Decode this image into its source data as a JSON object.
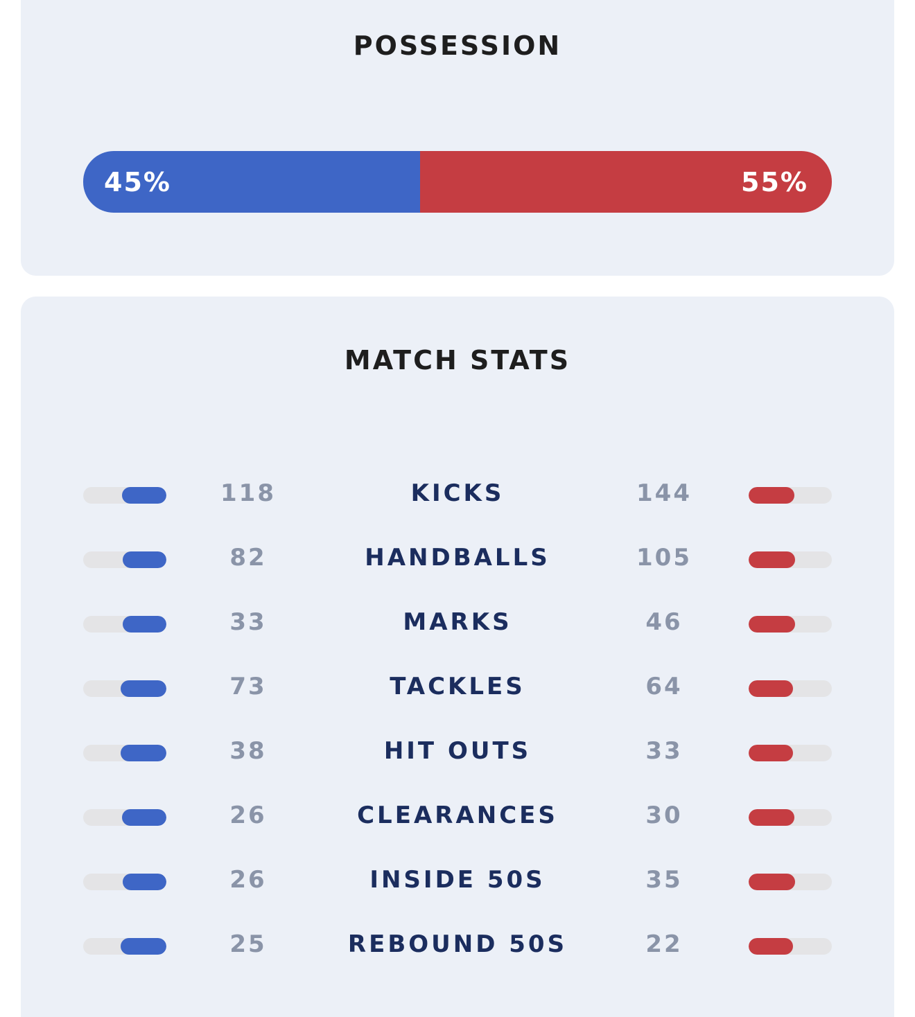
{
  "possession": {
    "title": "POSSESSION",
    "home_pct_label": "45%",
    "away_pct_label": "55%",
    "home_pct": 45,
    "away_pct": 55,
    "home_color": "#3e66c6",
    "away_color": "#c53d42"
  },
  "match_stats": {
    "title": "MATCH STATS",
    "rows": [
      {
        "label": "KICKS",
        "home": "118",
        "away": "144"
      },
      {
        "label": "HANDBALLS",
        "home": "82",
        "away": "105"
      },
      {
        "label": "MARKS",
        "home": "33",
        "away": "46"
      },
      {
        "label": "TACKLES",
        "home": "73",
        "away": "64"
      },
      {
        "label": "HIT OUTS",
        "home": "38",
        "away": "33"
      },
      {
        "label": "CLEARANCES",
        "home": "26",
        "away": "30"
      },
      {
        "label": "INSIDE 50S",
        "home": "26",
        "away": "35"
      },
      {
        "label": "REBOUND 50S",
        "home": "25",
        "away": "22"
      }
    ]
  }
}
